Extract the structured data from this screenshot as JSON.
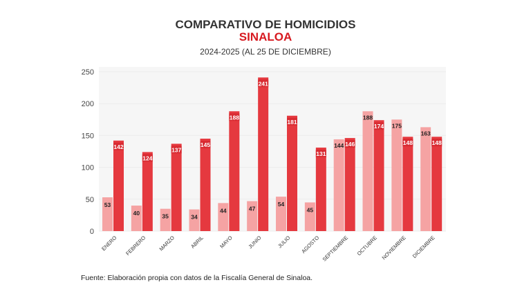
{
  "chart_data": {
    "type": "bar",
    "title": "COMPARATIVO DE HOMICIDIOS",
    "subtitle_highlight": "SINALOA",
    "subtitle": "2024-2025 (AL 25 DE DICIEMBRE)",
    "categories": [
      "ENERO",
      "FEBRERO",
      "MARZO",
      "ABRIL",
      "MAYO",
      "JUNIO",
      "JULIO",
      "AGOSTO",
      "SEPTIEMBRE",
      "OCTUBRE",
      "NOVIEMBRE",
      "DICIEMBRE"
    ],
    "series": [
      {
        "values": [
          53,
          40,
          35,
          34,
          44,
          47,
          54,
          45,
          144,
          188,
          175,
          163
        ],
        "color": "#f5a3a3"
      },
      {
        "values": [
          142,
          124,
          137,
          145,
          188,
          241,
          181,
          131,
          146,
          174,
          148,
          148
        ],
        "color": "#e5393f"
      }
    ],
    "ylim": [
      0,
      250
    ],
    "yticks": [
      0,
      50,
      100,
      150,
      200,
      250
    ],
    "grid": true,
    "source": "Fuente: Elaboración propia con datos de la Fiscalía General de Sinaloa."
  }
}
